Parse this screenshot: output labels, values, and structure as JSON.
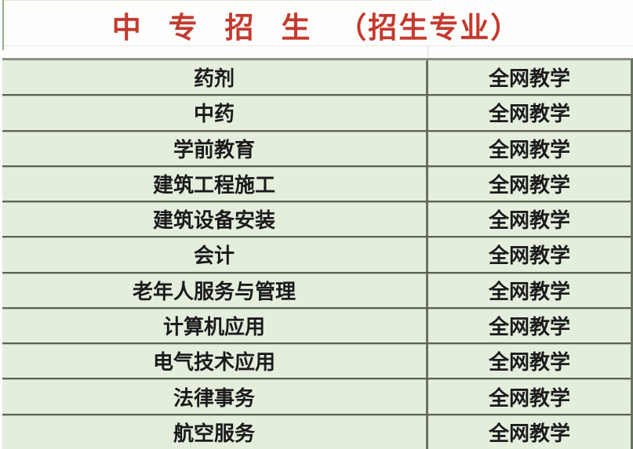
{
  "header": {
    "title": "中 专 招 生 （招生专业）"
  },
  "table": {
    "rows": [
      {
        "major": "药剂",
        "mode": "全网教学"
      },
      {
        "major": "中药",
        "mode": "全网教学"
      },
      {
        "major": "学前教育",
        "mode": "全网教学"
      },
      {
        "major": "建筑工程施工",
        "mode": "全网教学"
      },
      {
        "major": "建筑设备安装",
        "mode": "全网教学"
      },
      {
        "major": "会计",
        "mode": "全网教学"
      },
      {
        "major": "老年人服务与管理",
        "mode": "全网教学"
      },
      {
        "major": "计算机应用",
        "mode": "全网教学"
      },
      {
        "major": "电气技术应用",
        "mode": "全网教学"
      },
      {
        "major": "法律事务",
        "mode": "全网教学"
      },
      {
        "major": "航空服务",
        "mode": "全网教学"
      }
    ]
  },
  "colors": {
    "title_red": "#c43a2e",
    "cell_green": "#e4eedd",
    "row_border": "#6b7163",
    "header_border": "#8b8f85",
    "text": "#1b1b1b"
  }
}
